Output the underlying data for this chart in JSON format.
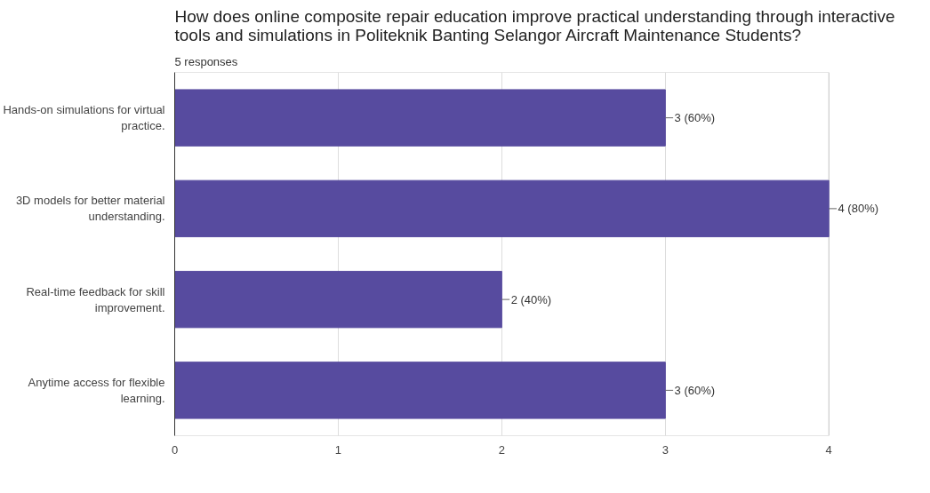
{
  "chart_data": {
    "type": "bar",
    "orientation": "horizontal",
    "title": "How does online composite repair education improve practical understanding through interactive tools and simulations in Politeknik Banting Selangor Aircraft Maintenance Students?",
    "subtitle": "5 responses",
    "categories": [
      "Hands-on simulations for virtual\npractice.",
      "3D models for better material\nunderstanding.",
      "Real-time feedback for skill\nimprovement.",
      "Anytime access for flexible\nlearning."
    ],
    "values": [
      3,
      4,
      2,
      3
    ],
    "color": "#574b9f",
    "value_labels": [
      "3 (60%)",
      "4 (80%)",
      "2 (40%)",
      "3 (60%)"
    ],
    "xlim": [
      0,
      4
    ],
    "xticks": [
      0,
      1,
      2,
      3,
      4
    ],
    "grid": "x"
  }
}
